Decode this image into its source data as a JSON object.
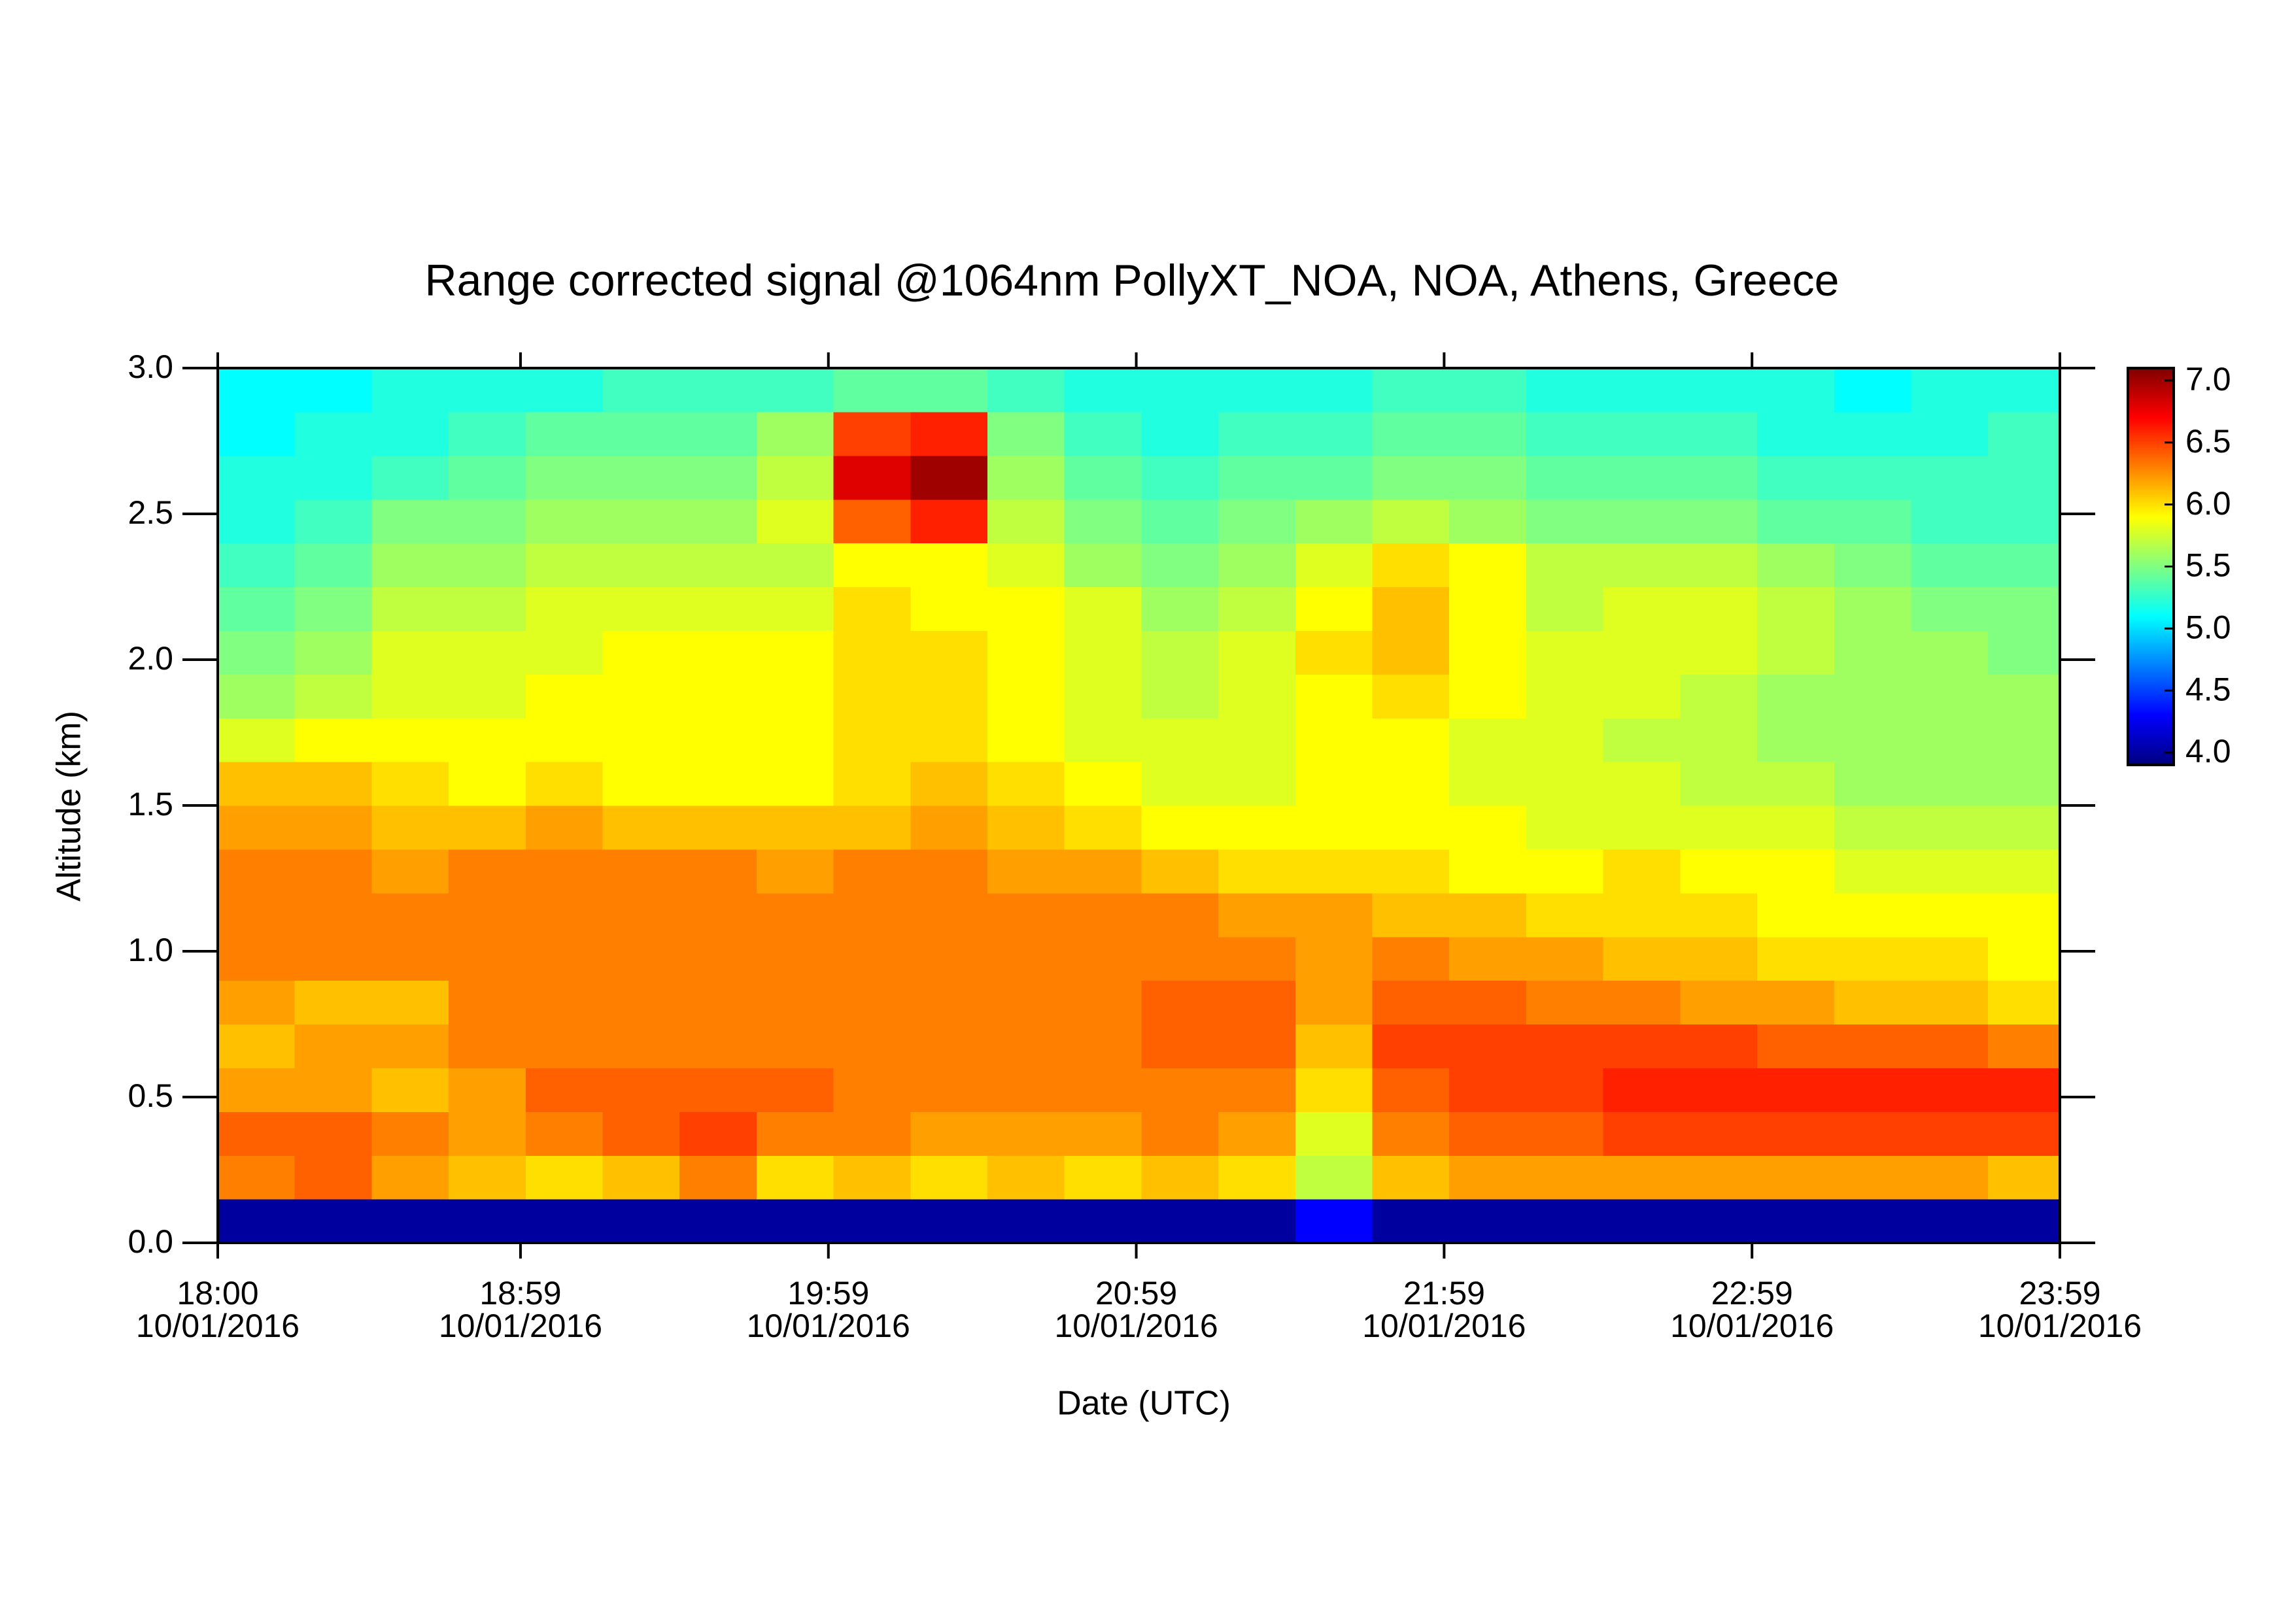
{
  "chart_data": {
    "type": "heatmap",
    "title": "Range corrected signal @1064nm  PollyXT_NOA, NOA, Athens, Greece",
    "xlabel": "Date (UTC)",
    "ylabel": "Altitude (km)",
    "xlim": [
      18,
      23.9833
    ],
    "xticks": [
      {
        "value": 18,
        "label": [
          "18:00",
          "10/01/2016"
        ]
      },
      {
        "value": 18.9833,
        "label": [
          "18:59",
          "10/01/2016"
        ]
      },
      {
        "value": 19.9833,
        "label": [
          "19:59",
          "10/01/2016"
        ]
      },
      {
        "value": 20.9833,
        "label": [
          "20:59",
          "10/01/2016"
        ]
      },
      {
        "value": 21.9833,
        "label": [
          "21:59",
          "10/01/2016"
        ]
      },
      {
        "value": 22.9833,
        "label": [
          "22:59",
          "10/01/2016"
        ]
      },
      {
        "value": 23.9833,
        "label": [
          "23:59",
          "10/01/2016"
        ]
      }
    ],
    "ylim": [
      0,
      3
    ],
    "yticks": [
      {
        "value": 0,
        "label": "0.0"
      },
      0.5,
      {
        "value": 1,
        "label": "1.0"
      },
      1.5,
      {
        "value": 2,
        "label": "2.0"
      },
      2.5,
      {
        "value": 3,
        "label": "3.0"
      }
    ],
    "zlim": [
      3.9,
      7.1
    ],
    "zticks": [
      {
        "value": 4,
        "label": "4.0"
      },
      4.5,
      {
        "value": 5,
        "label": "5.0"
      },
      5.5,
      {
        "value": 6,
        "label": "6.0"
      },
      6.5,
      {
        "value": 7,
        "label": "7.0"
      }
    ],
    "colormap": [
      "#00007f",
      "#0000ff",
      "#0080ff",
      "#00ffff",
      "#80ff80",
      "#ffff00",
      "#ff8000",
      "#ff0000",
      "#7f0000"
    ],
    "x": [
      18.125,
      18.375,
      18.625,
      18.875,
      19.125,
      19.375,
      19.625,
      19.875,
      20.125,
      20.375,
      20.625,
      20.875,
      21.125,
      21.375,
      21.625,
      21.875,
      22.125,
      22.375,
      22.625,
      22.875,
      23.125,
      23.375,
      23.625,
      23.875
    ],
    "y": [
      0.075,
      0.225,
      0.375,
      0.525,
      0.675,
      0.825,
      0.975,
      1.125,
      1.275,
      1.425,
      1.575,
      1.725,
      1.875,
      2.025,
      2.175,
      2.325,
      2.475,
      2.625,
      2.775,
      2.925
    ],
    "z": [
      [
        4.0,
        4.0,
        4.0,
        4.0,
        4.0,
        4.0,
        4.0,
        4.0,
        4.0,
        4.0,
        4.0,
        4.0,
        4.0,
        4.0,
        4.3,
        4.0,
        4.0,
        4.0,
        4.0,
        4.0,
        4.0,
        4.0,
        4.0,
        4.0
      ],
      [
        6.3,
        6.4,
        6.2,
        6.1,
        6.0,
        6.1,
        6.3,
        6.0,
        6.1,
        6.0,
        6.1,
        6.0,
        6.1,
        6.0,
        5.7,
        6.1,
        6.2,
        6.2,
        6.2,
        6.2,
        6.2,
        6.2,
        6.2,
        6.1
      ],
      [
        6.4,
        6.4,
        6.3,
        6.2,
        6.3,
        6.4,
        6.5,
        6.3,
        6.3,
        6.2,
        6.2,
        6.2,
        6.3,
        6.2,
        5.8,
        6.3,
        6.4,
        6.4,
        6.5,
        6.5,
        6.5,
        6.5,
        6.5,
        6.5
      ],
      [
        6.2,
        6.2,
        6.1,
        6.2,
        6.4,
        6.4,
        6.4,
        6.4,
        6.3,
        6.3,
        6.3,
        6.3,
        6.3,
        6.3,
        6.0,
        6.4,
        6.5,
        6.5,
        6.6,
        6.6,
        6.6,
        6.6,
        6.6,
        6.6
      ],
      [
        6.1,
        6.2,
        6.2,
        6.3,
        6.3,
        6.3,
        6.3,
        6.3,
        6.3,
        6.3,
        6.3,
        6.3,
        6.4,
        6.4,
        6.1,
        6.5,
        6.5,
        6.5,
        6.5,
        6.5,
        6.4,
        6.4,
        6.4,
        6.3
      ],
      [
        6.2,
        6.1,
        6.1,
        6.3,
        6.3,
        6.3,
        6.3,
        6.3,
        6.3,
        6.3,
        6.3,
        6.3,
        6.4,
        6.4,
        6.2,
        6.4,
        6.4,
        6.3,
        6.3,
        6.2,
        6.2,
        6.1,
        6.1,
        6.0
      ],
      [
        6.3,
        6.3,
        6.3,
        6.3,
        6.3,
        6.3,
        6.3,
        6.3,
        6.3,
        6.3,
        6.3,
        6.3,
        6.3,
        6.3,
        6.2,
        6.3,
        6.2,
        6.2,
        6.1,
        6.1,
        6.0,
        6.0,
        6.0,
        5.9
      ],
      [
        6.3,
        6.3,
        6.3,
        6.3,
        6.3,
        6.3,
        6.3,
        6.3,
        6.3,
        6.3,
        6.3,
        6.3,
        6.3,
        6.2,
        6.2,
        6.1,
        6.1,
        6.0,
        6.0,
        6.0,
        5.9,
        5.9,
        5.9,
        5.9
      ],
      [
        6.3,
        6.3,
        6.2,
        6.3,
        6.3,
        6.3,
        6.3,
        6.2,
        6.3,
        6.3,
        6.2,
        6.2,
        6.1,
        6.0,
        6.0,
        6.0,
        5.9,
        5.9,
        6.0,
        5.9,
        5.9,
        5.8,
        5.8,
        5.8
      ],
      [
        6.2,
        6.2,
        6.1,
        6.1,
        6.2,
        6.1,
        6.1,
        6.1,
        6.1,
        6.2,
        6.1,
        6.0,
        5.9,
        5.9,
        5.9,
        5.9,
        5.9,
        5.8,
        5.8,
        5.8,
        5.8,
        5.7,
        5.7,
        5.7
      ],
      [
        6.1,
        6.1,
        6.0,
        5.9,
        6.0,
        5.9,
        5.9,
        5.9,
        6.0,
        6.1,
        6.0,
        5.9,
        5.8,
        5.8,
        5.9,
        5.9,
        5.8,
        5.8,
        5.8,
        5.7,
        5.7,
        5.6,
        5.6,
        5.6
      ],
      [
        5.8,
        5.9,
        5.9,
        5.9,
        5.9,
        5.9,
        5.9,
        5.9,
        6.0,
        6.0,
        5.9,
        5.8,
        5.8,
        5.8,
        5.9,
        5.9,
        5.8,
        5.8,
        5.7,
        5.7,
        5.6,
        5.6,
        5.6,
        5.6
      ],
      [
        5.6,
        5.7,
        5.8,
        5.8,
        5.9,
        5.9,
        5.9,
        5.9,
        6.0,
        6.0,
        5.9,
        5.8,
        5.7,
        5.8,
        5.9,
        6.0,
        5.9,
        5.8,
        5.8,
        5.7,
        5.6,
        5.6,
        5.6,
        5.6
      ],
      [
        5.5,
        5.6,
        5.8,
        5.8,
        5.8,
        5.9,
        5.9,
        5.9,
        6.0,
        6.0,
        5.9,
        5.8,
        5.7,
        5.8,
        6.0,
        6.1,
        5.9,
        5.8,
        5.8,
        5.8,
        5.7,
        5.6,
        5.6,
        5.5
      ],
      [
        5.4,
        5.5,
        5.7,
        5.7,
        5.8,
        5.8,
        5.8,
        5.8,
        6.0,
        5.9,
        5.9,
        5.8,
        5.6,
        5.7,
        5.9,
        6.1,
        5.9,
        5.7,
        5.8,
        5.8,
        5.7,
        5.6,
        5.5,
        5.5
      ],
      [
        5.3,
        5.4,
        5.6,
        5.6,
        5.7,
        5.7,
        5.7,
        5.7,
        5.9,
        5.9,
        5.8,
        5.6,
        5.5,
        5.6,
        5.8,
        6.0,
        5.9,
        5.7,
        5.7,
        5.7,
        5.6,
        5.5,
        5.4,
        5.4
      ],
      [
        5.2,
        5.3,
        5.5,
        5.5,
        5.6,
        5.6,
        5.6,
        5.8,
        6.4,
        6.6,
        5.7,
        5.5,
        5.4,
        5.5,
        5.6,
        5.7,
        5.6,
        5.5,
        5.5,
        5.5,
        5.4,
        5.4,
        5.3,
        5.3
      ],
      [
        5.2,
        5.2,
        5.3,
        5.4,
        5.5,
        5.5,
        5.5,
        5.7,
        6.8,
        7.0,
        5.6,
        5.4,
        5.3,
        5.4,
        5.4,
        5.5,
        5.5,
        5.4,
        5.4,
        5.4,
        5.3,
        5.3,
        5.3,
        5.3
      ],
      [
        5.1,
        5.2,
        5.2,
        5.3,
        5.4,
        5.4,
        5.4,
        5.6,
        6.5,
        6.6,
        5.5,
        5.3,
        5.2,
        5.3,
        5.3,
        5.4,
        5.4,
        5.3,
        5.3,
        5.3,
        5.2,
        5.2,
        5.2,
        5.3
      ],
      [
        5.1,
        5.1,
        5.2,
        5.2,
        5.2,
        5.3,
        5.3,
        5.3,
        5.4,
        5.4,
        5.3,
        5.2,
        5.2,
        5.2,
        5.2,
        5.3,
        5.3,
        5.2,
        5.2,
        5.2,
        5.2,
        5.1,
        5.2,
        5.2
      ]
    ]
  }
}
